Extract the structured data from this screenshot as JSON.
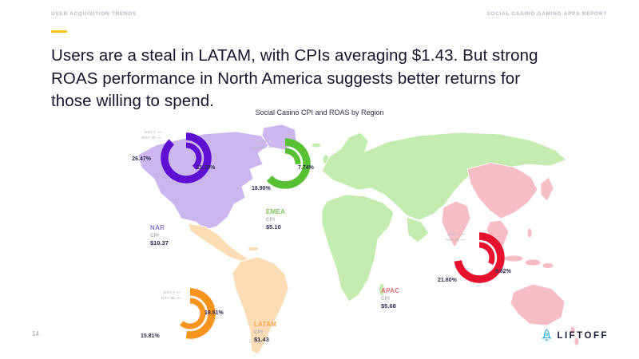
{
  "slide": {
    "header_left": "USER ACQUISITION TRENDS",
    "header_right": "SOCIAL CASINO GAMING APPS REPORT",
    "accent_color": "#ffc20e",
    "headline_lines": [
      "Users are a steal in LATAM, with CPIs averaging $1.43. But strong",
      "ROAS performance in North America suggests better returns for",
      "those willing to spend."
    ],
    "page_number": "14",
    "logo_text": "LIFTOFF"
  },
  "chart_data": {
    "type": "radial-gauge-map",
    "title": "Social Casino CPI and ROAS by Region",
    "metric": "ROAS by day, CPI by region",
    "legend": [
      "DAY 7",
      "DAY 30"
    ],
    "gauge_scale_max_pct": 30,
    "cpi_label": "CPI",
    "regions": [
      {
        "name": "NAR",
        "cpi": "$10.37",
        "day7_roas_pct": 11.7,
        "day30_roas_pct": 26.47,
        "day7_label": "11.70%",
        "day30_label": "26.47%",
        "color": "#5e10d2",
        "map_color": "#cbb7ee",
        "label_color": "#8b79c9"
      },
      {
        "name": "EMEA",
        "cpi": "$5.10",
        "day7_roas_pct": 7.74,
        "day30_roas_pct": 18.9,
        "day7_label": "7.74%",
        "day30_label": "18.90%",
        "color": "#57c033",
        "map_color": "#c5ecb0",
        "label_color": "#7cc95e"
      },
      {
        "name": "APAC",
        "cpi": "$5.68",
        "day7_roas_pct": 9.82,
        "day30_roas_pct": 21.8,
        "day7_label": "9.82%",
        "day30_label": "21.80%",
        "color": "#e8112d",
        "map_color": "#f7bdc5",
        "label_color": "#ef6a7a"
      },
      {
        "name": "LATAM",
        "cpi": "$1.43",
        "day7_roas_pct": 18.51,
        "day30_roas_pct": 15.81,
        "day7_label": "18.51%",
        "day30_label": "15.81%",
        "color": "#f7941e",
        "map_color": "#fbdcb4",
        "label_color": "#f6a44c"
      }
    ]
  }
}
